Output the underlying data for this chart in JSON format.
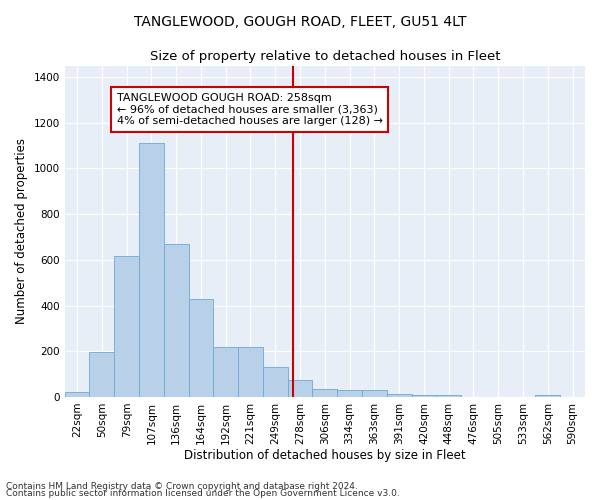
{
  "title": "TANGLEWOOD, GOUGH ROAD, FLEET, GU51 4LT",
  "subtitle": "Size of property relative to detached houses in Fleet",
  "xlabel": "Distribution of detached houses by size in Fleet",
  "ylabel": "Number of detached properties",
  "bar_labels": [
    "22sqm",
    "50sqm",
    "79sqm",
    "107sqm",
    "136sqm",
    "164sqm",
    "192sqm",
    "221sqm",
    "249sqm",
    "278sqm",
    "306sqm",
    "334sqm",
    "363sqm",
    "391sqm",
    "420sqm",
    "448sqm",
    "476sqm",
    "505sqm",
    "533sqm",
    "562sqm",
    "590sqm"
  ],
  "bar_values": [
    20,
    195,
    615,
    1110,
    670,
    430,
    220,
    220,
    130,
    75,
    35,
    30,
    30,
    15,
    10,
    10,
    0,
    0,
    0,
    10,
    0
  ],
  "bar_color": "#b8d0e8",
  "bar_edgecolor": "#6aaad4",
  "vline_x": 8.72,
  "vline_color": "#cc0000",
  "annotation_text": "TANGLEWOOD GOUGH ROAD: 258sqm\n← 96% of detached houses are smaller (3,363)\n4% of semi-detached houses are larger (128) →",
  "annotation_box_color": "#cc0000",
  "annotation_facecolor": "white",
  "ylim": [
    0,
    1450
  ],
  "yticks": [
    0,
    200,
    400,
    600,
    800,
    1000,
    1200,
    1400
  ],
  "footnote1": "Contains HM Land Registry data © Crown copyright and database right 2024.",
  "footnote2": "Contains public sector information licensed under the Open Government Licence v3.0.",
  "background_color": "#e8eef8",
  "title_fontsize": 10,
  "subtitle_fontsize": 9.5,
  "axis_label_fontsize": 8.5,
  "tick_fontsize": 7.5,
  "annotation_fontsize": 8,
  "footnote_fontsize": 6.5
}
